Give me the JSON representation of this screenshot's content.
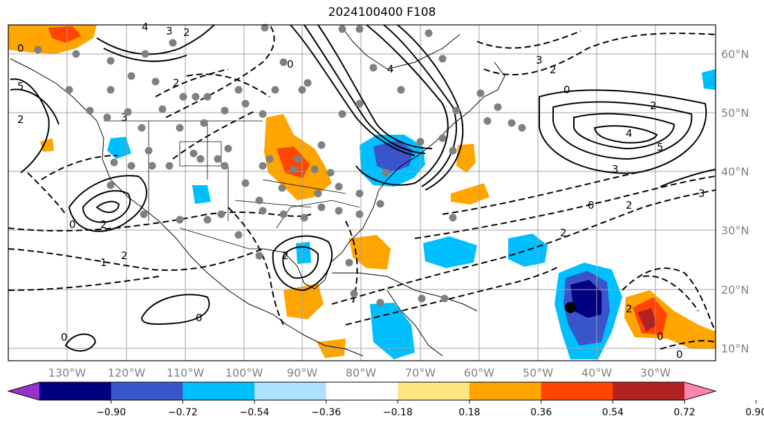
{
  "title": "2024100400 F108",
  "longitude_labels": [
    "130°W",
    "120°W",
    "110°W",
    "100°W",
    "90°W",
    "80°W",
    "70°W",
    "60°W",
    "50°W",
    "40°W",
    "30°W"
  ],
  "latitude_labels": [
    "60°N",
    "50°N",
    "40°N",
    "30°N",
    "20°N",
    "10°N"
  ],
  "contour_labels": [
    "4",
    "3",
    "2",
    "0",
    "5",
    "2",
    "3",
    "4",
    "0",
    "2",
    "3",
    "2",
    "0",
    "2",
    "4",
    "5",
    "3",
    "0",
    "2",
    "3",
    "2",
    "0",
    "2",
    "2",
    "0",
    "1",
    "2",
    "0",
    "2",
    "0",
    "0"
  ],
  "colorbar": {
    "tick_labels": [
      "−0.90",
      "−0.72",
      "−0.54",
      "−0.36",
      "−0.18",
      "0.18",
      "0.36",
      "0.54",
      "0.72",
      "0.90"
    ],
    "colors": [
      "#9932cc",
      "#000080",
      "#3a55cc",
      "#00bfff",
      "#aee0ff",
      "#ffffff",
      "#ffe680",
      "#ffa500",
      "#ff4500",
      "#b22222",
      "#ff85b0"
    ]
  },
  "station_marker_color": "#808080",
  "storm_marker_color": "#000000"
}
